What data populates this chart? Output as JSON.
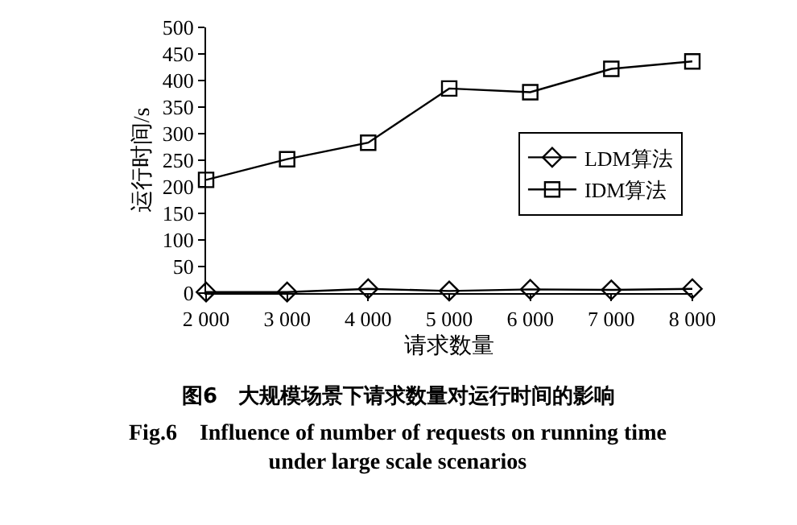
{
  "chart_data": {
    "type": "line",
    "title": "图6　大规模场景下请求数量对运行时间的影响",
    "subtitle": "Fig.6　Influence of number of requests on running time under large scale scenarios",
    "xlabel": "请求数量",
    "ylabel": "运行时间/s",
    "x": [
      2000,
      3000,
      4000,
      5000,
      6000,
      7000,
      8000
    ],
    "series": [
      {
        "name": "LDM算法",
        "color": "#000000",
        "marker": "diamond",
        "values": [
          2,
          2,
          8,
          4,
          7,
          6,
          8
        ]
      },
      {
        "name": "IDM算法",
        "color": "#000000",
        "marker": "square",
        "values": [
          213,
          252,
          283,
          385,
          378,
          422,
          436
        ]
      }
    ],
    "xlim": [
      2000,
      8000
    ],
    "xticks": [
      {
        "value": 2000,
        "label": "2 000"
      },
      {
        "value": 3000,
        "label": "3 000"
      },
      {
        "value": 4000,
        "label": "4 000"
      },
      {
        "value": 5000,
        "label": "5 000"
      },
      {
        "value": 6000,
        "label": "6 000"
      },
      {
        "value": 7000,
        "label": "7 000"
      },
      {
        "value": 8000,
        "label": "8 000"
      }
    ],
    "ylim": [
      0,
      500
    ],
    "yticks": [
      0,
      50,
      100,
      150,
      200,
      250,
      300,
      350,
      400,
      450,
      500
    ],
    "grid": false,
    "legend": "right",
    "line_style": "solid"
  }
}
